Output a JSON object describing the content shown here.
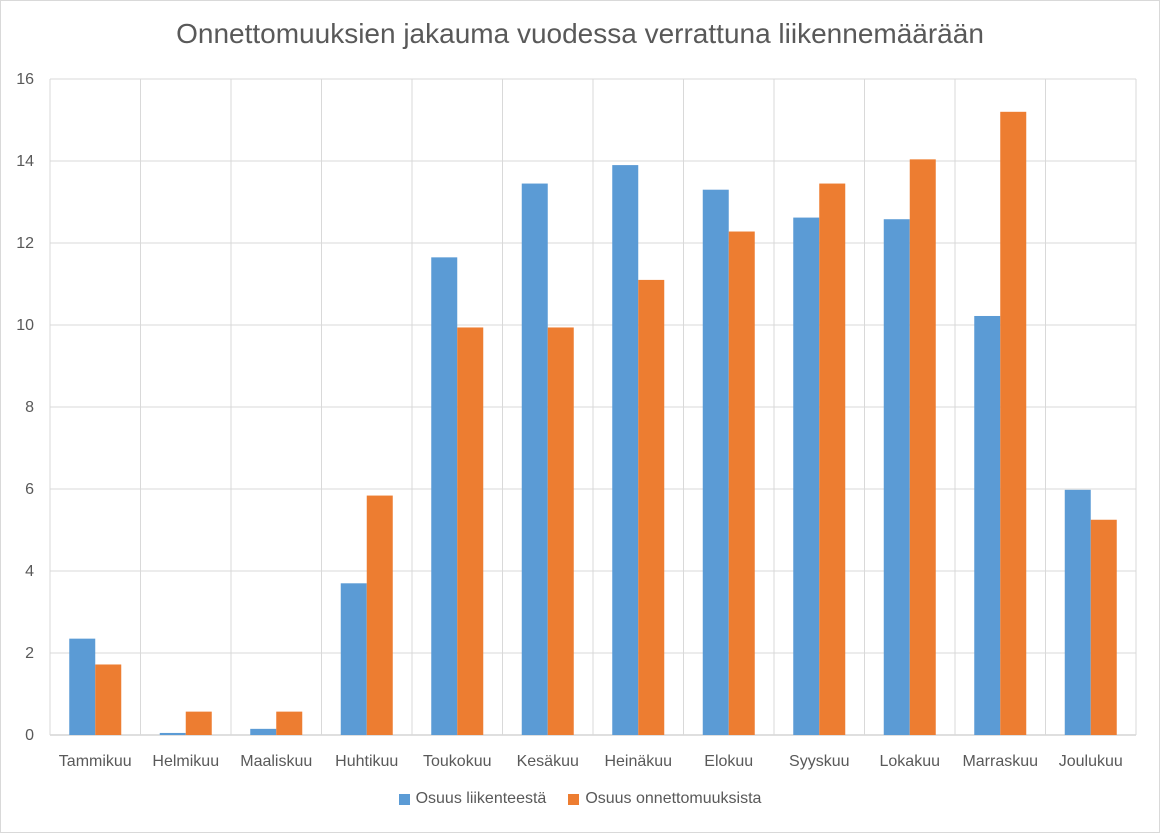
{
  "chart_data": {
    "type": "bar",
    "title": "Onnettomuuksien jakauma vuodessa verrattuna liikennemäärään",
    "categories": [
      "Tammikuu",
      "Helmikuu",
      "Maaliskuu",
      "Huhtikuu",
      "Toukokuu",
      "Kesäkuu",
      "Heinäkuu",
      "Elokuu",
      "Syyskuu",
      "Lokakuu",
      "Marraskuu",
      "Joulukuu"
    ],
    "series": [
      {
        "name": "Osuus liikenteestä",
        "color": "#5b9bd5",
        "values": [
          2.35,
          0.05,
          0.15,
          3.7,
          11.65,
          13.45,
          13.9,
          13.3,
          12.62,
          12.58,
          10.22,
          5.98
        ]
      },
      {
        "name": "Osuus onnettomuuksista",
        "color": "#ed7d31",
        "values": [
          1.72,
          0.57,
          0.57,
          5.84,
          9.94,
          9.94,
          11.1,
          12.28,
          13.45,
          14.04,
          15.2,
          5.25
        ]
      }
    ],
    "ylim": [
      0,
      16
    ],
    "yticks": [
      0,
      2,
      4,
      6,
      8,
      10,
      12,
      14,
      16
    ],
    "grid": true,
    "legend_position": "bottom"
  }
}
